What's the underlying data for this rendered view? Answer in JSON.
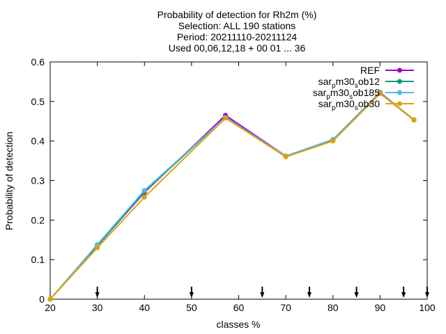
{
  "chart_data": {
    "type": "line",
    "title_lines": [
      "Probability of detection  for Rh2m (%)",
      "Selection: ALL    190 stations",
      "Period: 20211110-20211124",
      "Used 00,06,12,18 + 00 01 ... 36"
    ],
    "xlabel": "classes %",
    "ylabel": "Probability of detection",
    "xlim": [
      20,
      100
    ],
    "ylim": [
      0,
      0.6
    ],
    "x_ticks": [
      "20",
      "30",
      "40",
      "50",
      "60",
      "70",
      "80",
      "90",
      "100"
    ],
    "y_ticks": [
      "0",
      "0.1",
      "0.2",
      "0.3",
      "0.4",
      "0.5",
      "0.6"
    ],
    "x_tick_values": [
      20,
      30,
      40,
      50,
      60,
      70,
      80,
      90,
      100
    ],
    "y_tick_values": [
      0,
      0.1,
      0.2,
      0.3,
      0.4,
      0.5,
      0.6
    ],
    "grid": false,
    "legend_position": "top-right",
    "arrow_markers_x": [
      30,
      50,
      65,
      75,
      85,
      95,
      100
    ],
    "series": [
      {
        "name": "REF",
        "color": "#9400d3",
        "x": [
          20,
          30,
          40,
          57.2,
          70,
          80,
          90,
          97.2
        ],
        "y": [
          0.0,
          0.135,
          0.27,
          0.465,
          0.362,
          0.403,
          0.523,
          0.453
        ]
      },
      {
        "name": "sar_p m30_s ob12",
        "name_parts": [
          "sar",
          "p",
          "m30",
          "s",
          "ob12"
        ],
        "color": "#009e73",
        "x": [
          20,
          30,
          40,
          57.2,
          70,
          80,
          90,
          97.2
        ],
        "y": [
          0.0,
          0.135,
          0.272,
          0.46,
          0.362,
          0.403,
          0.522,
          0.453
        ]
      },
      {
        "name": "sar_p m30_s ob185",
        "name_parts": [
          "sar",
          "p",
          "m30",
          "s",
          "ob185"
        ],
        "color": "#56b4e9",
        "x": [
          20,
          30,
          40,
          57.2,
          70,
          80,
          90,
          97.2
        ],
        "y": [
          0.0,
          0.138,
          0.275,
          0.46,
          0.362,
          0.404,
          0.522,
          0.454
        ]
      },
      {
        "name": "sar_p m30_s ob30",
        "name_parts": [
          "sar",
          "p",
          "m30",
          "s",
          "ob30"
        ],
        "color": "#e69f00",
        "x": [
          20,
          30,
          40,
          57.2,
          70,
          80,
          90,
          97.2
        ],
        "y": [
          0.0,
          0.13,
          0.258,
          0.458,
          0.36,
          0.4,
          0.52,
          0.453
        ]
      }
    ]
  }
}
